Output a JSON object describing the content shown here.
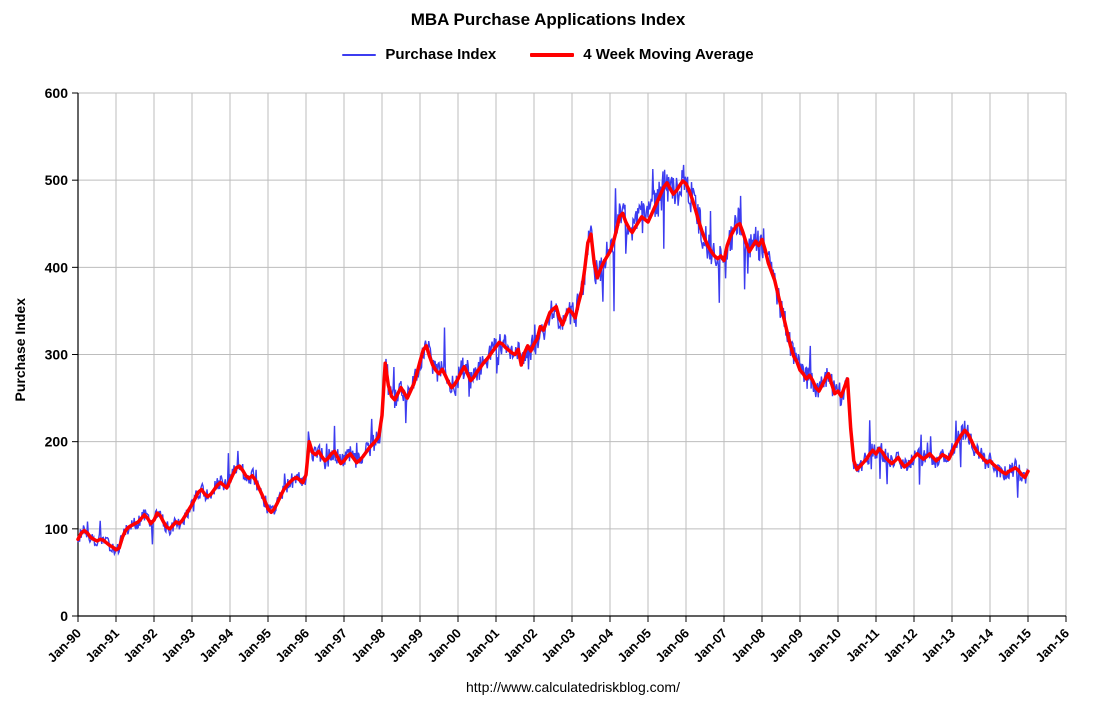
{
  "footer": {
    "url": "http://www.calculatedriskblog.com/"
  },
  "legend": {
    "items": [
      {
        "label": "Purchase Index",
        "color": "#3c3cf0"
      },
      {
        "label": "4 Week Moving Average",
        "color": "#ff0000"
      }
    ]
  },
  "chart_data": {
    "type": "line",
    "title": "MBA Purchase Applications Index",
    "xlabel": "",
    "ylabel": "Purchase Index",
    "ylim": [
      0,
      600
    ],
    "y_ticks": [
      0,
      100,
      200,
      300,
      400,
      500,
      600
    ],
    "x_range": [
      1990,
      2016
    ],
    "x_tick_labels": [
      "Jan-90",
      "Jan-91",
      "Jan-92",
      "Jan-93",
      "Jan-94",
      "Jan-95",
      "Jan-96",
      "Jan-97",
      "Jan-98",
      "Jan-99",
      "Jan-00",
      "Jan-01",
      "Jan-02",
      "Jan-03",
      "Jan-04",
      "Jan-05",
      "Jan-06",
      "Jan-07",
      "Jan-08",
      "Jan-09",
      "Jan-10",
      "Jan-11",
      "Jan-12",
      "Jan-13",
      "Jan-14",
      "Jan-15",
      "Jan-16"
    ],
    "grid": true,
    "grid_color": "#bdbdbd",
    "legend_position": "top",
    "series": [
      {
        "name": "Purchase Index",
        "role": "raw",
        "color": "#3c3cf0",
        "width": 1.4,
        "noise": {
          "seed": 13,
          "amplitude": 9,
          "spike_probability": 0.06,
          "spike_amplitude": 30
        }
      },
      {
        "name": "4 Week Moving Average",
        "role": "moving_average",
        "color": "#ff0000",
        "width": 3.5,
        "x_start": 1990,
        "points_per_year": 12,
        "values": [
          88,
          95,
          98,
          95,
          90,
          88,
          86,
          88,
          87,
          84,
          81,
          79,
          76,
          78,
          90,
          98,
          102,
          104,
          106,
          108,
          112,
          116,
          112,
          106,
          110,
          118,
          115,
          108,
          102,
          100,
          104,
          108,
          106,
          110,
          116,
          122,
          128,
          135,
          142,
          145,
          140,
          137,
          140,
          145,
          150,
          153,
          150,
          147,
          155,
          163,
          170,
          172,
          167,
          161,
          158,
          161,
          156,
          148,
          140,
          132,
          123,
          119,
          123,
          130,
          138,
          145,
          150,
          154,
          157,
          159,
          156,
          153,
          162,
          200,
          188,
          185,
          189,
          183,
          178,
          181,
          186,
          189,
          182,
          175,
          178,
          183,
          186,
          181,
          176,
          179,
          183,
          188,
          193,
          197,
          201,
          206,
          230,
          290,
          265,
          252,
          248,
          255,
          262,
          256,
          250,
          258,
          266,
          278,
          292,
          305,
          310,
          298,
          288,
          282,
          278,
          283,
          276,
          268,
          262,
          266,
          272,
          280,
          286,
          278,
          270,
          274,
          280,
          285,
          290,
          294,
          299,
          304,
          309,
          314,
          312,
          308,
          305,
          302,
          300,
          306,
          288,
          302,
          310,
          304,
          312,
          318,
          332,
          328,
          338,
          348,
          352,
          355,
          342,
          334,
          344,
          352,
          348,
          342,
          358,
          372,
          398,
          428,
          438,
          405,
          388,
          398,
          406,
          412,
          418,
          428,
          442,
          458,
          462,
          452,
          445,
          440,
          446,
          452,
          458,
          455,
          452,
          460,
          468,
          476,
          484,
          492,
          497,
          490,
          484,
          488,
          494,
          499,
          496,
          488,
          478,
          466,
          453,
          442,
          432,
          424,
          418,
          413,
          410,
          413,
          408,
          425,
          435,
          442,
          448,
          450,
          440,
          428,
          418,
          424,
          430,
          425,
          432,
          420,
          405,
          395,
          385,
          370,
          355,
          340,
          325,
          310,
          298,
          292,
          282,
          278,
          272,
          276,
          270,
          262,
          258,
          265,
          272,
          278,
          266,
          255,
          258,
          252,
          262,
          272,
          215,
          178,
          168,
          172,
          176,
          180,
          186,
          190,
          186,
          192,
          188,
          182,
          178,
          175,
          178,
          182,
          176,
          171,
          174,
          177,
          182,
          186,
          183,
          180,
          183,
          186,
          182,
          178,
          181,
          185,
          183,
          180,
          188,
          196,
          202,
          208,
          213,
          209,
          202,
          194,
          188,
          184,
          180,
          176,
          178,
          174,
          171,
          168,
          165,
          163,
          166,
          168,
          170,
          167,
          162,
          159,
          166
        ]
      }
    ]
  }
}
